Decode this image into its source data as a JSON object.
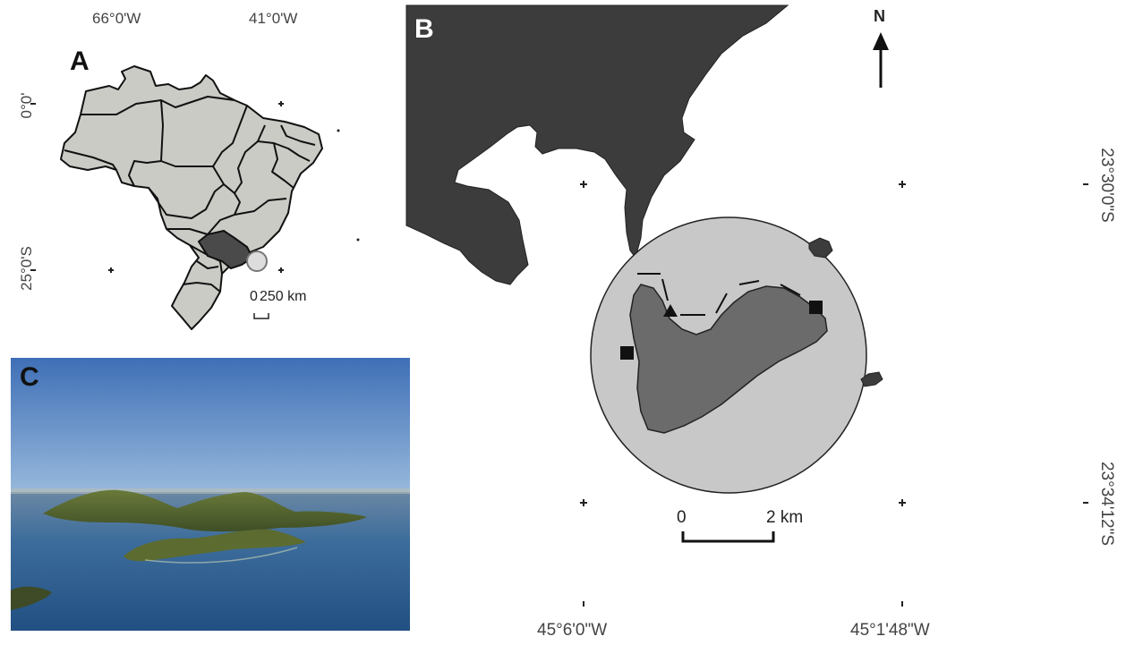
{
  "panel_a": {
    "letter": "A",
    "lon_labels": [
      "66°0'W",
      "41°0'W"
    ],
    "lat_labels": [
      "0°0'",
      "25°0'S"
    ],
    "scale_bar": {
      "label_left": "0",
      "label_right": "250 km"
    }
  },
  "panel_b": {
    "letter": "B",
    "north_label": "N",
    "lon_labels": [
      "45°6'0\"W",
      "45°1'48\"W"
    ],
    "lat_labels": [
      "23°30'0\"S",
      "23°34'12\"S"
    ],
    "scale_bar": {
      "label_left": "0",
      "label_right": "2 km"
    }
  },
  "panel_c": {
    "letter": "C"
  },
  "colors": {
    "land_dark": "#3c3c3c",
    "state_gray": "#cbcbc6",
    "highlight_state": "#4a4a4a",
    "island": "#6b6b6b",
    "buffer_circle": "#c8c8c8",
    "sky_top": "#3f6fb6",
    "sea": "#2f5d90"
  },
  "legend_symbols": [
    "square-site-icon",
    "triangle-site-icon"
  ]
}
